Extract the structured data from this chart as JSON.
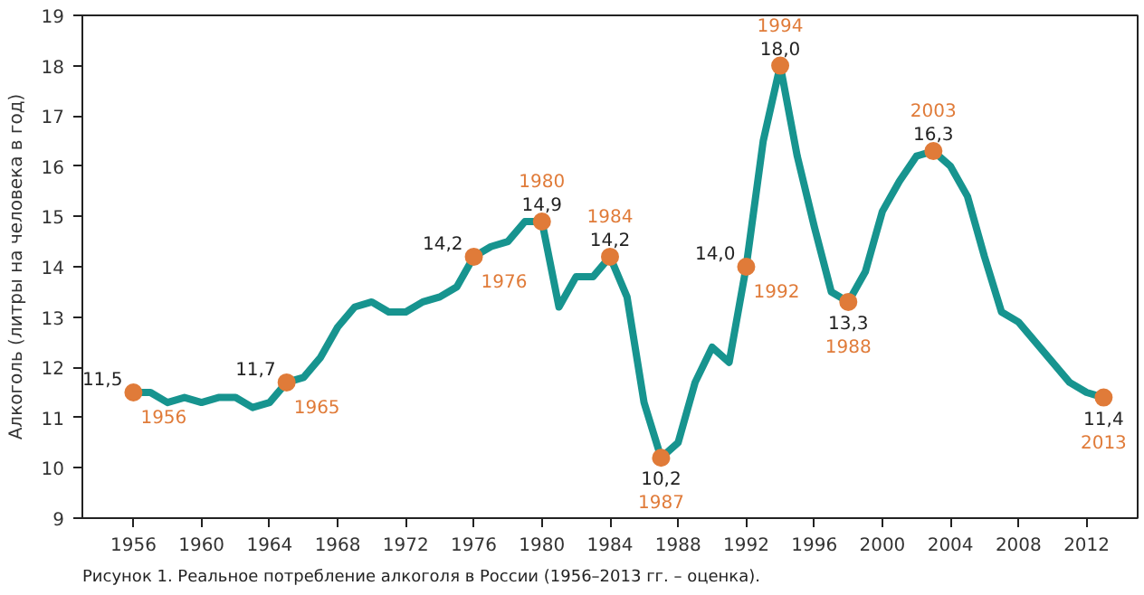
{
  "chart_data": {
    "type": "line",
    "ylabel": "Алкоголь (литры на человека в год)",
    "x": [
      1956,
      1957,
      1958,
      1959,
      1960,
      1961,
      1962,
      1963,
      1964,
      1965,
      1966,
      1967,
      1968,
      1969,
      1970,
      1971,
      1972,
      1973,
      1974,
      1975,
      1976,
      1977,
      1978,
      1979,
      1980,
      1981,
      1982,
      1983,
      1984,
      1985,
      1986,
      1987,
      1988,
      1989,
      1990,
      1991,
      1992,
      1993,
      1994,
      1995,
      1996,
      1997,
      1998,
      1999,
      2000,
      2001,
      2002,
      2003,
      2004,
      2005,
      2006,
      2007,
      2008,
      2009,
      2010,
      2011,
      2012,
      2013
    ],
    "series": [
      {
        "type": "line",
        "color": "#17948f",
        "values": [
          11.5,
          11.5,
          11.3,
          11.4,
          11.3,
          11.4,
          11.4,
          11.2,
          11.3,
          11.7,
          11.8,
          12.2,
          12.8,
          13.2,
          13.3,
          13.1,
          13.1,
          13.3,
          13.4,
          13.6,
          14.2,
          14.4,
          14.5,
          14.9,
          14.9,
          13.2,
          13.8,
          13.8,
          14.2,
          13.4,
          11.3,
          10.2,
          10.5,
          11.7,
          12.4,
          12.1,
          14.0,
          16.5,
          18.0,
          16.2,
          14.8,
          13.5,
          13.3,
          13.9,
          15.1,
          15.7,
          16.2,
          16.3,
          16.0,
          15.4,
          14.2,
          13.1,
          12.9,
          12.5,
          12.1,
          11.7,
          11.5,
          11.4
        ]
      },
      {
        "type": "scatter",
        "color": "#e07b39",
        "marker": "circle",
        "x": [
          1956,
          1965,
          1976,
          1980,
          1984,
          1987,
          1992,
          1994,
          1998,
          2003,
          2013
        ],
        "values": [
          11.5,
          11.7,
          14.2,
          14.9,
          14.2,
          10.2,
          14.0,
          18.0,
          13.3,
          16.3,
          11.4
        ],
        "value_labels": [
          "11,5",
          "11,7",
          "14,2",
          "14,9",
          "14,2",
          "10,2",
          "14,0",
          "18,0",
          "13,3",
          "16,3",
          "11,4"
        ]
      }
    ],
    "xlim": [
      1953,
      2015
    ],
    "xticks": [
      1956,
      1960,
      1964,
      1968,
      1972,
      1976,
      1980,
      1984,
      1988,
      1992,
      1996,
      2000,
      2004,
      2008,
      2012
    ],
    "ylim": [
      9,
      19
    ],
    "yticks": [
      9,
      10,
      11,
      12,
      13,
      14,
      15,
      16,
      17,
      18,
      19
    ],
    "grid": false,
    "annotations": [
      {
        "text": "1956",
        "x": 1956,
        "y": 11.5
      },
      {
        "text": "1965",
        "x": 1965,
        "y": 11.7
      },
      {
        "text": "1976",
        "x": 1976,
        "y": 14.2
      },
      {
        "text": "1980",
        "x": 1980,
        "y": 14.9
      },
      {
        "text": "1984",
        "x": 1984,
        "y": 14.2
      },
      {
        "text": "1987",
        "x": 1987,
        "y": 10.2
      },
      {
        "text": "1992",
        "x": 1992,
        "y": 14.0
      },
      {
        "text": "1994",
        "x": 1994,
        "y": 18.0
      },
      {
        "text": "1988",
        "x": 1998,
        "y": 13.3
      },
      {
        "text": "2003",
        "x": 2003,
        "y": 16.3
      },
      {
        "text": "2013",
        "x": 2013,
        "y": 11.4
      },
      "Рисунок 1. Реальное потребление алкоголя в России (1956–2013 гг. – оценка)."
    ]
  }
}
